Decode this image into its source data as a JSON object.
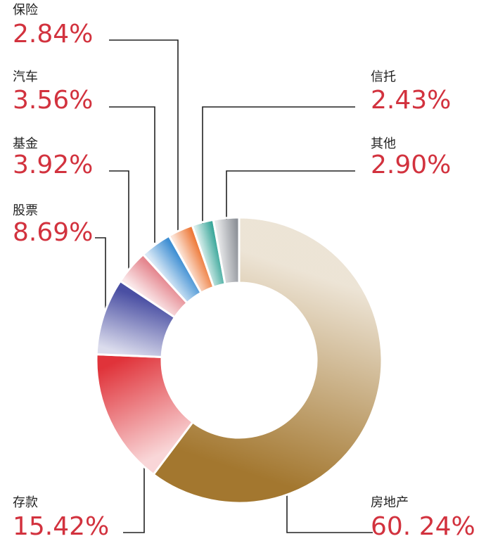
{
  "chart_data": {
    "type": "donut",
    "categories": [
      "房地产",
      "存款",
      "股票",
      "基金",
      "汽车",
      "保险",
      "信托",
      "其他"
    ],
    "values": [
      60.24,
      15.42,
      8.69,
      3.92,
      3.56,
      2.84,
      2.43,
      2.9
    ],
    "value_labels": [
      "60. 24%",
      "15.42%",
      "8.69%",
      "3.92%",
      "3.56%",
      "2.84%",
      "2.43%",
      "2.90%"
    ],
    "colors": [
      "#a3772f",
      "#e0333a",
      "#4a4fa3",
      "#e5878f",
      "#3f8fd3",
      "#ee7a3a",
      "#3aa79a",
      "#8d9198"
    ]
  }
}
